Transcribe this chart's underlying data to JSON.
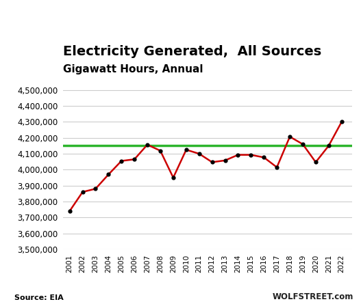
{
  "title_line1": "Electricity Generated,  All Sources",
  "title_line2": "Gigawatt Hours, Annual",
  "years": [
    2001,
    2002,
    2003,
    2004,
    2005,
    2006,
    2007,
    2008,
    2009,
    2010,
    2011,
    2012,
    2013,
    2014,
    2015,
    2016,
    2017,
    2018,
    2019,
    2020,
    2021,
    2022
  ],
  "values": [
    3740000,
    3860000,
    3880000,
    3970000,
    4055000,
    4065000,
    4157000,
    4119000,
    3950000,
    4125000,
    4100000,
    4047000,
    4058000,
    4093000,
    4093000,
    4077000,
    4015000,
    4207000,
    4160000,
    4047000,
    4150000,
    4300000
  ],
  "hline_value": 4150000,
  "hline_color": "#2db52d",
  "line_color": "#cc0000",
  "marker_color": "#000000",
  "ylim": [
    3500000,
    4550000
  ],
  "yticks": [
    3500000,
    3600000,
    3700000,
    3800000,
    3900000,
    4000000,
    4100000,
    4200000,
    4300000,
    4400000,
    4500000
  ],
  "source_text": "Source: EIA",
  "watermark_text": "WOLFSTREET.com",
  "bg_color": "#ffffff",
  "grid_color": "#cccccc",
  "title_fontsize": 14,
  "subtitle_fontsize": 11
}
